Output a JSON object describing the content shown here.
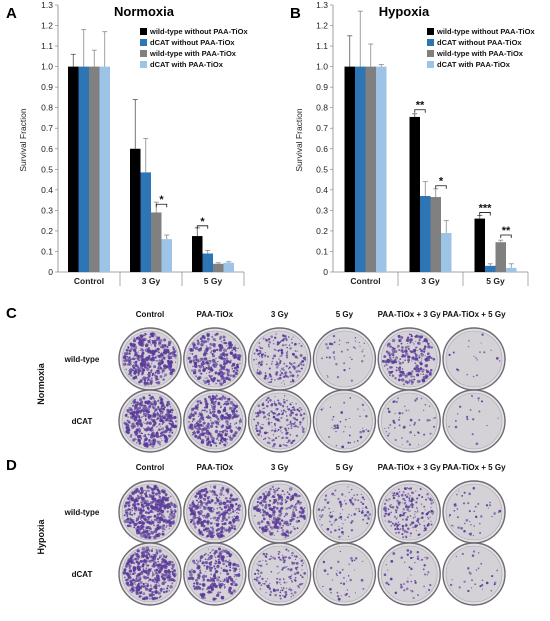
{
  "panels": {
    "a": "A",
    "b": "B",
    "c": "C",
    "d": "D"
  },
  "colors": {
    "wt_without": "#000000",
    "dcat_without": "#2e75b6",
    "wt_with": "#808080",
    "dcat_with": "#9dc3e6",
    "well_bg": "#d4d2d6",
    "colony": "#5b3b9a"
  },
  "chart_data": [
    {
      "type": "bar",
      "title": "Normoxia",
      "ylabel": "Survival Fraction",
      "xlabel": "",
      "ylim": [
        0,
        1.3
      ],
      "yticks": [
        "0",
        "0.1",
        "0.2",
        "0.3",
        "0.4",
        "0.5",
        "0.6",
        "0.7",
        "0.8",
        "0.9",
        "1.0",
        "1.1",
        "1.2",
        "1.3"
      ],
      "categories": [
        "Control",
        "3 Gy",
        "5 Gy"
      ],
      "legend_position": "top-right",
      "grid": false,
      "series": [
        {
          "name": "wild-type without PAA-TiOx",
          "values": [
            1.0,
            0.6,
            0.175
          ],
          "errors": [
            0.06,
            0.24,
            0.04
          ]
        },
        {
          "name": "dCAT without PAA-TiOx",
          "values": [
            1.0,
            0.485,
            0.09
          ],
          "errors": [
            0.18,
            0.165,
            0.015
          ]
        },
        {
          "name": "wild-type with PAA-TiOx",
          "values": [
            1.0,
            0.29,
            0.04
          ],
          "errors": [
            0.08,
            0.05,
            0.005
          ]
        },
        {
          "name": "dCAT with PAA-TiOx",
          "values": [
            1.0,
            0.16,
            0.045
          ],
          "errors": [
            0.17,
            0.02,
            0.005
          ]
        }
      ],
      "annotations": [
        {
          "text": "*",
          "category": "3 Gy",
          "between": [
            2,
            3
          ],
          "y": 0.33
        },
        {
          "text": "*",
          "category": "5 Gy",
          "between": [
            0,
            1
          ],
          "y": 0.225
        }
      ]
    },
    {
      "type": "bar",
      "title": "Hypoxia",
      "ylabel": "Survival Fraction",
      "xlabel": "",
      "ylim": [
        0,
        1.3
      ],
      "yticks": [
        "0",
        "0.1",
        "0.2",
        "0.3",
        "0.4",
        "0.5",
        "0.6",
        "0.7",
        "0.8",
        "0.9",
        "1.0",
        "1.1",
        "1.2",
        "1.3"
      ],
      "categories": [
        "Control",
        "3 Gy",
        "5 Gy"
      ],
      "legend_position": "top-right",
      "grid": false,
      "series": [
        {
          "name": "wild-type without PAA-TiOx",
          "values": [
            1.0,
            0.755,
            0.26
          ],
          "errors": [
            0.15,
            0.015,
            0.015
          ]
        },
        {
          "name": "dCAT without PAA-TiOx",
          "values": [
            1.0,
            0.37,
            0.03
          ],
          "errors": [
            0.27,
            0.07,
            0.01
          ]
        },
        {
          "name": "wild-type with PAA-TiOx",
          "values": [
            1.0,
            0.365,
            0.145
          ],
          "errors": [
            0.11,
            0.04,
            0.01
          ]
        },
        {
          "name": "dCAT with PAA-TiOx",
          "values": [
            1.0,
            0.19,
            0.02
          ],
          "errors": [
            0.01,
            0.06,
            0.02
          ]
        }
      ],
      "annotations": [
        {
          "text": "**",
          "category": "3 Gy",
          "between": [
            0,
            1
          ],
          "y": 0.79
        },
        {
          "text": "*",
          "category": "3 Gy",
          "between": [
            2,
            3
          ],
          "y": 0.42
        },
        {
          "text": "***",
          "category": "5 Gy",
          "between": [
            0,
            1
          ],
          "y": 0.29
        },
        {
          "text": "**",
          "category": "5 Gy",
          "between": [
            2,
            3
          ],
          "y": 0.18
        }
      ]
    }
  ],
  "plates": {
    "columns": [
      "Control",
      "PAA-TiOx",
      "3 Gy",
      "5 Gy",
      "PAA-TiOx + 3 Gy",
      "PAA-TiOx + 5 Gy"
    ],
    "rows": [
      "wild-type",
      "dCAT"
    ],
    "normoxia_label": "Normoxia",
    "hypoxia_label": "Hypoxia",
    "normoxia_density": [
      [
        0.95,
        0.7,
        0.45,
        0.08,
        0.55,
        0.03
      ],
      [
        0.95,
        0.72,
        0.5,
        0.08,
        0.12,
        0.03
      ]
    ],
    "hypoxia_density": [
      [
        1.0,
        0.85,
        0.6,
        0.22,
        0.5,
        0.1
      ],
      [
        1.0,
        0.6,
        0.35,
        0.08,
        0.12,
        0.06
      ]
    ]
  }
}
